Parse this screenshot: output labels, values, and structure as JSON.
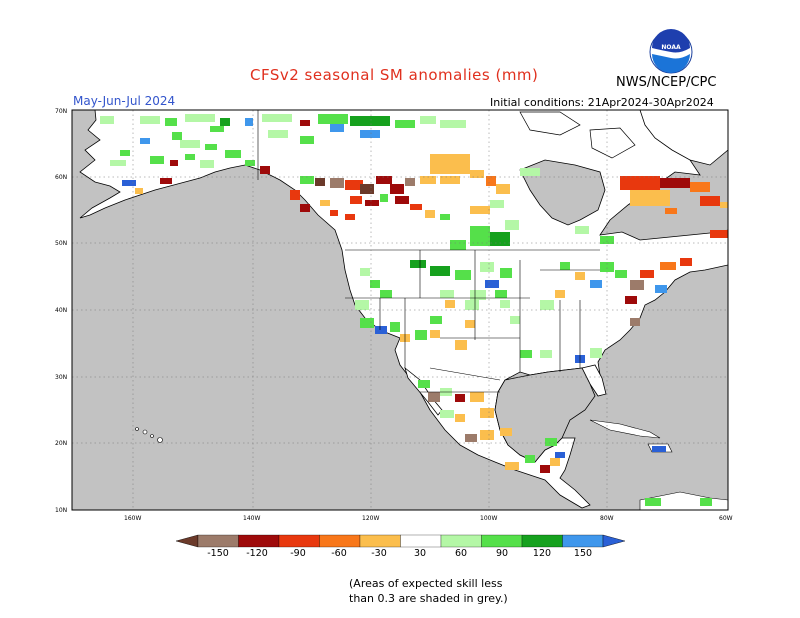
{
  "header": {
    "title": "CFSv2 seasonal SM anomalies (mm)",
    "agency": "NWS/NCEP/CPC",
    "period": "May-Jun-Jul 2024",
    "initial_conditions": "Initial conditions: 21Apr2024-30Apr2024"
  },
  "logo": {
    "text": "NOAA",
    "icon": "noaa-logo-icon"
  },
  "axes": {
    "lat_labels": [
      "70N",
      "60N",
      "50N",
      "40N",
      "30N",
      "20N",
      "10N"
    ],
    "lon_labels": [
      "160W",
      "140W",
      "120W",
      "100W",
      "80W",
      "60W"
    ]
  },
  "colorbar": {
    "labels": [
      "-150",
      "-120",
      "-90",
      "-60",
      "-30",
      "30",
      "60",
      "90",
      "120",
      "150"
    ],
    "colors": [
      "#6b3a2a",
      "#9c7b6a",
      "#9e0a0a",
      "#e8380e",
      "#f8771a",
      "#fbbe4d",
      "#ffffff",
      "#b4f7a6",
      "#55e04a",
      "#16a11e",
      "#3f97ec",
      "#2a60d6"
    ]
  },
  "colors": {
    "ocean": "#c2c2c2",
    "land": "#ffffff",
    "title": "#e0301e",
    "period": "#3355cc"
  },
  "footnote": {
    "line1": "(Areas of expected skill less",
    "line2": "than 0.3 are shaded in grey.)"
  }
}
